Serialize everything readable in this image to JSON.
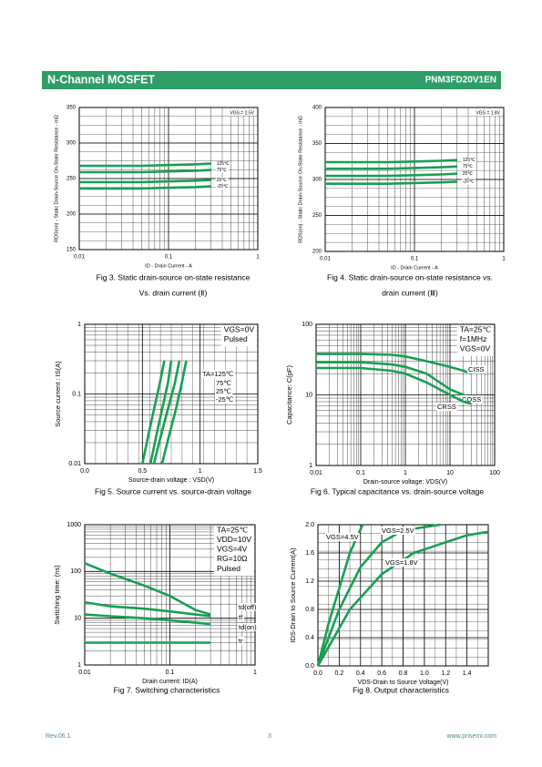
{
  "header": {
    "left": "N-Channel MOSFET",
    "right": "PNM3FD20V1EN"
  },
  "footer": {
    "left": "Rev.06.1",
    "center": "3",
    "right": "www.prisemi.com"
  },
  "chart_data": [
    {
      "type": "line",
      "caption": [
        "Fig 3. Static drain-source on-state resistance",
        "Vs. drain current (Ⅱ)"
      ],
      "x_label": "ID - Drain Current - A",
      "y_label": "RDS(on) - Static Drain-Source On-State Resistance - mΩ",
      "conditions": [
        "VGS = 2.5V"
      ],
      "xscale": "log",
      "xlim": [
        0.01,
        1
      ],
      "xticks": [
        0.01,
        0.1,
        1
      ],
      "ylim": [
        150,
        350
      ],
      "yticks": [
        150,
        200,
        250,
        300,
        350
      ],
      "series": [
        {
          "name": "125℃",
          "color": "#17a052",
          "x": [
            0.01,
            0.02,
            0.05,
            0.1,
            0.2,
            0.3
          ],
          "values": [
            268,
            268,
            268,
            269,
            270,
            271
          ]
        },
        {
          "name": "75℃",
          "color": "#17a052",
          "x": [
            0.01,
            0.02,
            0.05,
            0.1,
            0.2,
            0.3
          ],
          "values": [
            259,
            259,
            259,
            260,
            261,
            262
          ]
        },
        {
          "name": "25℃",
          "color": "#17a052",
          "x": [
            0.01,
            0.02,
            0.05,
            0.1,
            0.2,
            0.3
          ],
          "values": [
            245,
            245,
            245,
            246,
            247,
            248
          ]
        },
        {
          "name": "-25℃",
          "color": "#17a052",
          "x": [
            0.01,
            0.02,
            0.05,
            0.1,
            0.2,
            0.3
          ],
          "values": [
            236,
            236,
            236,
            237,
            238,
            239
          ]
        }
      ]
    },
    {
      "type": "line",
      "caption": [
        "Fig 4. Static drain-source on-state resistance vs.",
        "drain current (Ⅲ)"
      ],
      "x_label": "ID - Drain Current - A",
      "y_label": "RDS(on) - Static Drain-Source On-State Resistance - mΩ",
      "conditions": [
        "VGS = 1.8V"
      ],
      "xscale": "log",
      "xlim": [
        0.01,
        1
      ],
      "xticks": [
        0.01,
        0.1,
        1
      ],
      "ylim": [
        200,
        400
      ],
      "yticks": [
        200,
        250,
        300,
        350,
        400
      ],
      "series": [
        {
          "name": "125℃",
          "color": "#17a052",
          "x": [
            0.01,
            0.02,
            0.05,
            0.1,
            0.2,
            0.3
          ],
          "values": [
            324,
            324,
            324,
            325,
            326,
            327
          ]
        },
        {
          "name": "75℃",
          "color": "#17a052",
          "x": [
            0.01,
            0.02,
            0.05,
            0.1,
            0.2,
            0.3
          ],
          "values": [
            315,
            315,
            315,
            316,
            317,
            318
          ]
        },
        {
          "name": "25℃",
          "color": "#17a052",
          "x": [
            0.01,
            0.02,
            0.05,
            0.1,
            0.2,
            0.3
          ],
          "values": [
            305,
            305,
            305,
            306,
            307,
            308
          ]
        },
        {
          "name": "-25℃",
          "color": "#17a052",
          "x": [
            0.01,
            0.02,
            0.05,
            0.1,
            0.2,
            0.3
          ],
          "values": [
            294,
            294,
            294,
            295,
            296,
            297
          ]
        }
      ]
    },
    {
      "type": "line",
      "caption": [
        "Fig 5. Source current vs. source-drain voltage"
      ],
      "x_label": "Source-drain voltage : VSD(V)",
      "y_label": "Source current : IS(A)",
      "conditions": [
        "VGS=0V",
        "Pulsed"
      ],
      "yscale": "log",
      "xlim": [
        0,
        1.5
      ],
      "xticks": [
        {
          "value": 0,
          "label": "0.0"
        },
        0.5,
        1,
        1.5
      ],
      "ylim": [
        0.01,
        1
      ],
      "yticks": [
        0.01,
        0.1,
        1
      ],
      "series": [
        {
          "name": "TA=125℃",
          "color": "#17a052",
          "x": [
            0.5,
            0.55,
            0.6,
            0.65,
            0.69
          ],
          "values": [
            0.01,
            0.025,
            0.06,
            0.14,
            0.3
          ]
        },
        {
          "name": "75℃",
          "color": "#17a052",
          "x": [
            0.57,
            0.62,
            0.67,
            0.72,
            0.75
          ],
          "values": [
            0.01,
            0.025,
            0.06,
            0.14,
            0.3
          ]
        },
        {
          "name": "25℃",
          "color": "#17a052",
          "x": [
            0.6,
            0.66,
            0.72,
            0.78,
            0.82
          ],
          "values": [
            0.01,
            0.025,
            0.06,
            0.14,
            0.3
          ]
        },
        {
          "name": "-25℃",
          "color": "#17a052",
          "x": [
            0.67,
            0.73,
            0.79,
            0.84,
            0.88
          ],
          "values": [
            0.01,
            0.025,
            0.06,
            0.14,
            0.3
          ]
        }
      ]
    },
    {
      "type": "line",
      "caption": [
        "Fig 6. Typical capacitance vs. drain-source voltage"
      ],
      "x_label": "Drain-source voltage: VDS(V)",
      "y_label": "Capacitance: C(pF)",
      "conditions": [
        "TA=25℃",
        "f=1MHz",
        "VGS=0V"
      ],
      "xscale": "log",
      "yscale": "log",
      "xlim": [
        0.01,
        100
      ],
      "xticks": [
        0.01,
        0.1,
        1,
        10,
        100
      ],
      "ylim": [
        1,
        100
      ],
      "yticks": [
        1,
        10,
        100
      ],
      "series": [
        {
          "name": "CISS",
          "color": "#17a052",
          "x": [
            0.01,
            0.1,
            0.5,
            1,
            3,
            10,
            20,
            30
          ],
          "values": [
            38,
            38,
            37,
            35,
            30,
            25,
            22,
            20
          ]
        },
        {
          "name": "COSS",
          "color": "#17a052",
          "x": [
            0.01,
            0.1,
            0.5,
            1,
            3,
            10,
            20,
            30
          ],
          "values": [
            29,
            29,
            27,
            25,
            20,
            12,
            10,
            9
          ]
        },
        {
          "name": "CRSS",
          "color": "#17a052",
          "x": [
            0.01,
            0.1,
            0.5,
            1,
            3,
            10,
            20,
            30
          ],
          "values": [
            24,
            24,
            22,
            20,
            15,
            10,
            8,
            7.5
          ]
        }
      ]
    },
    {
      "type": "line",
      "caption": [
        "Fig 7. Switching characteristics"
      ],
      "x_label": "Drain current: ID(A)",
      "y_label": "Switching time: (ns)",
      "conditions": [
        "TA=25℃",
        "VDD=10V",
        "VGS=4V",
        "RG=10Ω",
        "Pulsed"
      ],
      "xscale": "log",
      "yscale": "log",
      "xlim": [
        0.01,
        1
      ],
      "xticks": [
        0.01,
        0.1,
        1
      ],
      "ylim": [
        1,
        1000
      ],
      "yticks": [
        1,
        10,
        100,
        1000
      ],
      "series": [
        {
          "name": "td(off)",
          "color": "#17a052",
          "x": [
            0.01,
            0.02,
            0.05,
            0.1,
            0.2,
            0.3
          ],
          "values": [
            150,
            90,
            50,
            30,
            15,
            12
          ]
        },
        {
          "name": "tf",
          "color": "#17a052",
          "x": [
            0.01,
            0.02,
            0.05,
            0.1,
            0.2,
            0.3
          ],
          "values": [
            22,
            18,
            16,
            14,
            12,
            11
          ]
        },
        {
          "name": "td(on)",
          "color": "#17a052",
          "x": [
            0.01,
            0.02,
            0.05,
            0.1,
            0.2,
            0.3
          ],
          "values": [
            12,
            11,
            10,
            9,
            8,
            7.5
          ]
        },
        {
          "name": "tr",
          "color": "#17a052",
          "x": [
            0.01,
            0.02,
            0.05,
            0.1,
            0.2,
            0.3
          ],
          "values": [
            3,
            3,
            3,
            3,
            3,
            3
          ]
        }
      ]
    },
    {
      "type": "line",
      "caption": [
        "Fig 8. Output characteristics"
      ],
      "x_label": "VDS-Drain   to Source   Voltage(V)",
      "y_label": "IDS-Drain to Source Current(A)",
      "xlim": [
        0,
        1.6
      ],
      "xticks": [
        {
          "value": 0,
          "label": "0.0"
        },
        0.2,
        0.4,
        0.6,
        0.8,
        {
          "value": 1,
          "label": "1.0"
        },
        1.2,
        1.4
      ],
      "ylim": [
        0,
        2
      ],
      "yticks": [
        {
          "value": 0,
          "label": "0.0"
        },
        0.4,
        0.8,
        1.2,
        1.6,
        {
          "value": 2,
          "label": "2.0"
        }
      ],
      "series": [
        {
          "name": "VGS=4.5V",
          "color": "#17a052",
          "x": [
            0,
            0.1,
            0.2,
            0.3,
            0.42
          ],
          "values": [
            0,
            0.6,
            1.1,
            1.6,
            2
          ]
        },
        {
          "name": "VGS=2.5V",
          "color": "#17a052",
          "x": [
            0,
            0.2,
            0.4,
            0.6,
            0.8,
            1.15
          ],
          "values": [
            0,
            0.8,
            1.4,
            1.75,
            1.92,
            2
          ]
        },
        {
          "name": "VGS=1.8V",
          "color": "#17a052",
          "x": [
            0,
            0.3,
            0.6,
            0.9,
            1.4,
            1.6
          ],
          "values": [
            0,
            0.8,
            1.3,
            1.6,
            1.85,
            1.9
          ]
        }
      ]
    }
  ]
}
